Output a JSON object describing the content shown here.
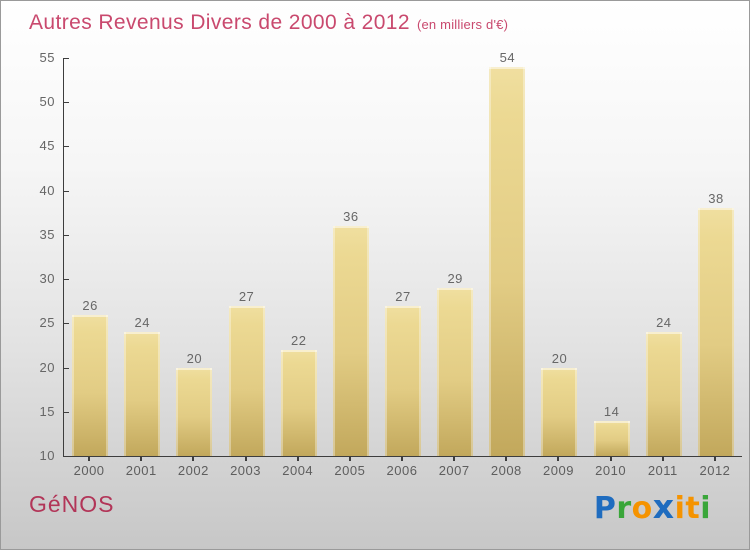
{
  "header": {
    "title": "Autres Revenus Divers de 2000 à 2012",
    "subtitle": "(en milliers d'€)",
    "title_color": "#c9496e"
  },
  "chart_data": {
    "type": "bar",
    "title": "Autres Revenus Divers de 2000 à 2012",
    "subtitle": "(en milliers d'€)",
    "categories": [
      "2000",
      "2001",
      "2002",
      "2003",
      "2004",
      "2005",
      "2006",
      "2007",
      "2008",
      "2009",
      "2010",
      "2011",
      "2012"
    ],
    "values": [
      26,
      24,
      20,
      27,
      22,
      36,
      27,
      29,
      54,
      20,
      14,
      24,
      38
    ],
    "ylim": [
      10,
      55
    ],
    "ytick_step": 5,
    "ytick_labels": [
      "10",
      "15",
      "20",
      "25",
      "30",
      "35",
      "40",
      "45",
      "50",
      "55"
    ],
    "grid": false,
    "legend": false,
    "value_labels_shown": true,
    "bar_color_top": "#ecd993",
    "bar_color_bottom": "#c2a85c",
    "axis_color": "#3d3d3d",
    "label_color": "#666666"
  },
  "footer": {
    "brand": "GéNOS",
    "brand_color": "#b23558",
    "logo_name": "Proxiti",
    "logo_letters": [
      {
        "char": "P",
        "color": "#1f6cbf"
      },
      {
        "char": "r",
        "color": "#3aa63a"
      },
      {
        "char": "o",
        "color": "#f59300"
      },
      {
        "char": "x",
        "color": "#1f6cbf",
        "bold": true
      },
      {
        "char": "i",
        "color": "#f59300"
      },
      {
        "char": "t",
        "color": "#f59300"
      },
      {
        "char": "i",
        "color": "#3aa63a"
      }
    ]
  }
}
